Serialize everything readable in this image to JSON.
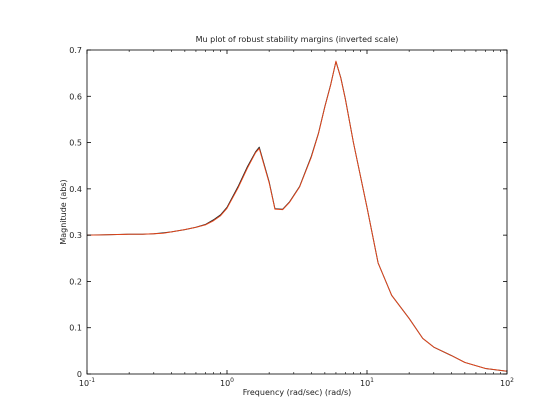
{
  "chart_data": {
    "type": "line",
    "title": "Mu plot of robust stability margins (inverted scale)",
    "xlabel": "Frequency (rad/sec)  (rad/s)",
    "ylabel": "Magnitude (abs)",
    "xscale": "log",
    "xlim": [
      0.1,
      100
    ],
    "ylim": [
      0,
      0.7
    ],
    "xticks": [
      {
        "value": 0.1,
        "base": "10",
        "exp": "-1"
      },
      {
        "value": 1,
        "base": "10",
        "exp": "0"
      },
      {
        "value": 10,
        "base": "10",
        "exp": "1"
      },
      {
        "value": 100,
        "base": "10",
        "exp": "2"
      }
    ],
    "yticks": [
      "0",
      "0.1",
      "0.2",
      "0.3",
      "0.4",
      "0.5",
      "0.6",
      "0.7"
    ],
    "grid": false,
    "legend": "none",
    "series": [
      {
        "color": "#2a2a2a",
        "x": [
          0.1,
          0.15,
          0.2,
          0.25,
          0.3,
          0.35,
          0.4,
          0.5,
          0.6,
          0.7,
          0.8,
          0.9,
          1.0,
          1.2,
          1.4,
          1.6,
          1.7,
          2.0,
          2.2,
          2.5,
          2.8,
          3.3,
          4.0,
          4.5,
          5.0,
          5.5,
          6.0,
          6.5,
          7.0,
          8.0,
          10,
          12,
          15,
          20,
          25,
          30,
          40,
          50,
          70,
          100
        ],
        "y": [
          0.3,
          0.301,
          0.302,
          0.302,
          0.303,
          0.305,
          0.307,
          0.312,
          0.317,
          0.323,
          0.333,
          0.344,
          0.36,
          0.405,
          0.448,
          0.48,
          0.49,
          0.415,
          0.357,
          0.356,
          0.372,
          0.405,
          0.47,
          0.52,
          0.578,
          0.625,
          0.675,
          0.64,
          0.595,
          0.5,
          0.36,
          0.24,
          0.17,
          0.12,
          0.077,
          0.058,
          0.04,
          0.025,
          0.012,
          0.006
        ]
      },
      {
        "color": "#e8461a",
        "x": [
          0.1,
          0.15,
          0.2,
          0.25,
          0.3,
          0.35,
          0.4,
          0.5,
          0.6,
          0.7,
          0.8,
          0.9,
          1.0,
          1.2,
          1.4,
          1.6,
          1.7,
          2.0,
          2.2,
          2.5,
          2.8,
          3.3,
          4.0,
          4.5,
          5.0,
          5.5,
          6.0,
          6.5,
          7.0,
          8.0,
          10,
          12,
          15,
          20,
          25,
          30,
          40,
          50,
          70,
          100
        ],
        "y": [
          0.3,
          0.301,
          0.302,
          0.302,
          0.303,
          0.304,
          0.307,
          0.312,
          0.317,
          0.322,
          0.331,
          0.342,
          0.358,
          0.402,
          0.445,
          0.478,
          0.487,
          0.413,
          0.356,
          0.355,
          0.371,
          0.404,
          0.468,
          0.519,
          0.577,
          0.624,
          0.676,
          0.639,
          0.594,
          0.5,
          0.36,
          0.24,
          0.17,
          0.12,
          0.077,
          0.058,
          0.04,
          0.025,
          0.012,
          0.006
        ]
      }
    ]
  }
}
